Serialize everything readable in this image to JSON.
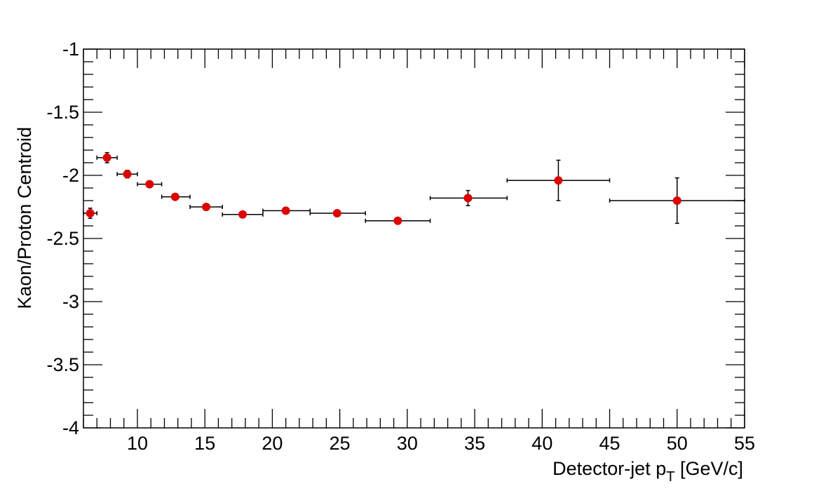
{
  "chart_data": {
    "type": "scatter",
    "title": "",
    "xlabel": {
      "main": "Detector-jet p",
      "subscript": "T",
      "suffix": " [GeV/c]"
    },
    "ylabel": "Kaon/Proton Centroid",
    "xlim": [
      6,
      55
    ],
    "ylim": [
      -4,
      -1
    ],
    "x_ticks": [
      10,
      15,
      20,
      25,
      30,
      35,
      40,
      45,
      50,
      55
    ],
    "x_tick_labels": [
      "10",
      "15",
      "20",
      "25",
      "30",
      "35",
      "40",
      "45",
      "50",
      "55"
    ],
    "y_ticks": [
      -4,
      -3.5,
      -3,
      -2.5,
      -2,
      -1.5,
      -1
    ],
    "y_tick_labels": [
      "-4",
      "-3.5",
      "-3",
      "-2.5",
      "-2",
      "-1.5",
      "-1"
    ],
    "grid": false,
    "marker_color": "#dd0000",
    "series": [
      {
        "points": [
          {
            "x": 6.5,
            "xlo": 6.0,
            "xhi": 7.0,
            "y": -2.3,
            "yerr": 0.04
          },
          {
            "x": 7.75,
            "xlo": 7.0,
            "xhi": 8.5,
            "y": -1.86,
            "yerr": 0.04
          },
          {
            "x": 9.25,
            "xlo": 8.5,
            "xhi": 10.0,
            "y": -1.99,
            "yerr": 0.03
          },
          {
            "x": 10.9,
            "xlo": 10.0,
            "xhi": 11.8,
            "y": -2.07,
            "yerr": 0.01
          },
          {
            "x": 12.8,
            "xlo": 11.8,
            "xhi": 13.9,
            "y": -2.17,
            "yerr": 0.01
          },
          {
            "x": 15.1,
            "xlo": 13.9,
            "xhi": 16.3,
            "y": -2.25,
            "yerr": 0.01
          },
          {
            "x": 17.8,
            "xlo": 16.3,
            "xhi": 19.3,
            "y": -2.31,
            "yerr": 0.01
          },
          {
            "x": 21.0,
            "xlo": 19.3,
            "xhi": 22.8,
            "y": -2.28,
            "yerr": 0.01
          },
          {
            "x": 24.8,
            "xlo": 22.8,
            "xhi": 26.9,
            "y": -2.3,
            "yerr": 0.01
          },
          {
            "x": 29.3,
            "xlo": 26.9,
            "xhi": 31.7,
            "y": -2.36,
            "yerr": 0.01
          },
          {
            "x": 34.5,
            "xlo": 31.7,
            "xhi": 37.4,
            "y": -2.18,
            "yerr": 0.06
          },
          {
            "x": 41.2,
            "xlo": 37.4,
            "xhi": 45.0,
            "y": -2.04,
            "yerr": 0.16
          },
          {
            "x": 50.0,
            "xlo": 45.0,
            "xhi": 55.0,
            "y": -2.2,
            "yerr": 0.18
          }
        ]
      }
    ]
  }
}
